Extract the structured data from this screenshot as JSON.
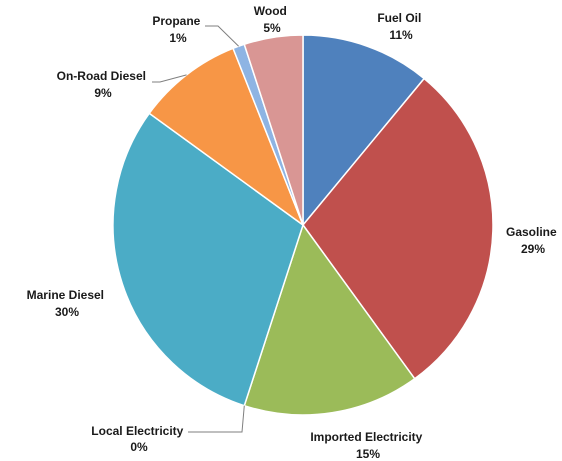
{
  "chart_data": {
    "type": "pie",
    "title": "",
    "slices": [
      {
        "label": "Fuel Oil",
        "value": 11,
        "value_label": "11%",
        "color": "#4f81bd"
      },
      {
        "label": "Gasoline",
        "value": 29,
        "value_label": "29%",
        "color": "#c0504d"
      },
      {
        "label": "Imported Electricity",
        "value": 15,
        "value_label": "15%",
        "color": "#9bbb59"
      },
      {
        "label": "Local Electricity",
        "value": 0,
        "value_label": "0%",
        "color": "#8064a2"
      },
      {
        "label": "Marine Diesel",
        "value": 30,
        "value_label": "30%",
        "color": "#4bacc6"
      },
      {
        "label": "On-Road Diesel",
        "value": 9,
        "value_label": "9%",
        "color": "#f79646"
      },
      {
        "label": "Propane",
        "value": 1,
        "value_label": "1%",
        "color": "#8eb4e3"
      },
      {
        "label": "Wood",
        "value": 5,
        "value_label": "5%",
        "color": "#d99694"
      }
    ],
    "start_angle_deg": 0,
    "direction": "clockwise",
    "legend": "none",
    "data_labels": "outside"
  }
}
